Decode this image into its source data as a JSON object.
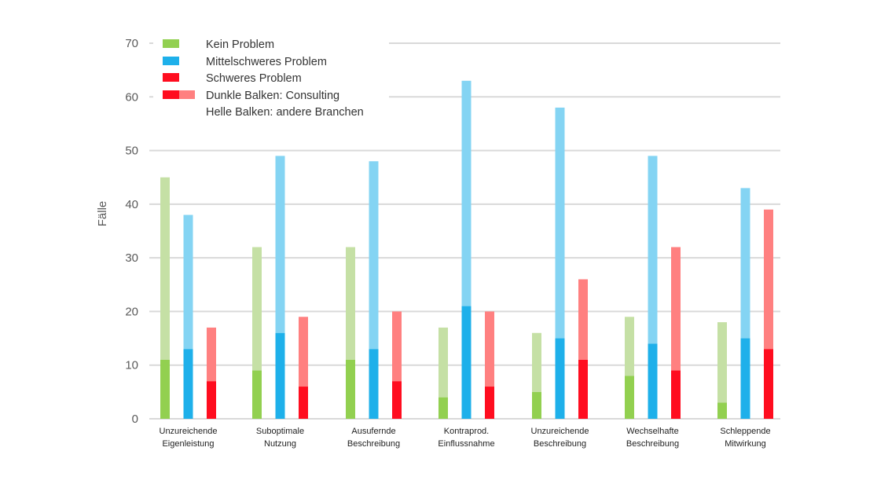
{
  "chart_data": {
    "type": "bar",
    "title": "",
    "xlabel": "",
    "ylabel": "Fälle",
    "ylim": [
      0,
      70
    ],
    "yticks": [
      "0",
      "10",
      "20",
      "30",
      "40",
      "50",
      "60",
      "70"
    ],
    "grid": true,
    "legend_placement": "top-left",
    "categories": [
      [
        "Unzureichende",
        "Eigenleistung"
      ],
      [
        "Suboptimale",
        "Nutzung"
      ],
      [
        "Ausufernde",
        "Beschreibung"
      ],
      [
        "Kontraprod.",
        "Einflussnahme"
      ],
      [
        "Unzureichende",
        "Beschreibung"
      ],
      [
        "Wechselhafte",
        "Beschreibung"
      ],
      [
        "Schleppende",
        "Mitwirkung"
      ]
    ],
    "series": [
      {
        "name": "Kein Problem",
        "color_dark": "#92d050",
        "color_light": "#c5e0a5",
        "consulting": [
          11,
          9,
          11,
          4,
          5,
          8,
          3
        ],
        "total": [
          45,
          32,
          32,
          17,
          16,
          19,
          18
        ]
      },
      {
        "name": "Mittelschweres Problem",
        "color_dark": "#1eb0ea",
        "color_light": "#84d4f3",
        "consulting": [
          13,
          16,
          13,
          21,
          15,
          14,
          15
        ],
        "total": [
          38,
          49,
          48,
          63,
          58,
          49,
          43
        ]
      },
      {
        "name": "Schweres Problem",
        "color_dark": "#ff0d1f",
        "color_light": "#ff8080",
        "consulting": [
          7,
          6,
          7,
          6,
          11,
          9,
          13
        ],
        "total": [
          17,
          19,
          20,
          20,
          26,
          32,
          39
        ]
      }
    ],
    "legend": [
      "Kein Problem",
      "Mittelschweres Problem",
      "Schweres Problem",
      "Dunkle Balken: Consulting",
      "Helle Balken: andere Branchen"
    ]
  }
}
